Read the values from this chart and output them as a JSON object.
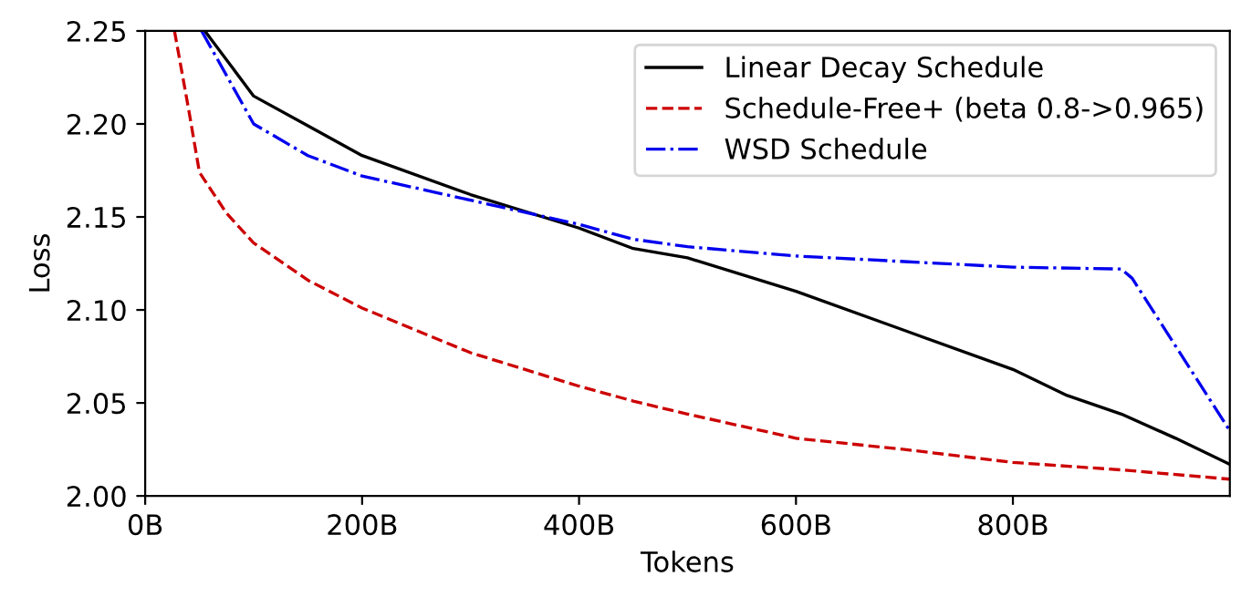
{
  "chart_data": {
    "type": "line",
    "xlabel": "Tokens",
    "ylabel": "Loss",
    "xlim": [
      0,
      1000
    ],
    "ylim": [
      2.0,
      2.25
    ],
    "xticks": [
      {
        "value": 0,
        "label": "0B"
      },
      {
        "value": 200,
        "label": "200B"
      },
      {
        "value": 400,
        "label": "400B"
      },
      {
        "value": 600,
        "label": "600B"
      },
      {
        "value": 800,
        "label": "800B"
      }
    ],
    "yticks": [
      {
        "value": 2.0,
        "label": "2.00"
      },
      {
        "value": 2.05,
        "label": "2.05"
      },
      {
        "value": 2.1,
        "label": "2.10"
      },
      {
        "value": 2.15,
        "label": "2.15"
      },
      {
        "value": 2.2,
        "label": "2.20"
      },
      {
        "value": 2.25,
        "label": "2.25"
      }
    ],
    "grid": false,
    "legend": "top right",
    "marker": "none",
    "series": [
      {
        "name": "Linear Decay Schedule",
        "color": "#000000",
        "line_style": "solid",
        "x": [
          55,
          100,
          150,
          200,
          300,
          400,
          450,
          500,
          600,
          700,
          800,
          850,
          900,
          950,
          1000
        ],
        "values": [
          2.25,
          2.215,
          2.199,
          2.183,
          2.162,
          2.144,
          2.133,
          2.128,
          2.11,
          2.089,
          2.068,
          2.054,
          2.044,
          2.031,
          2.017
        ]
      },
      {
        "name": "Schedule-Free+ (beta 0.8->0.965)",
        "color": "#cc0000",
        "line_style": "dashed",
        "x": [
          27,
          40,
          50,
          75,
          100,
          150,
          200,
          300,
          400,
          450,
          500,
          600,
          700,
          800,
          900,
          1000
        ],
        "values": [
          2.25,
          2.208,
          2.174,
          2.152,
          2.136,
          2.116,
          2.101,
          2.077,
          2.059,
          2.051,
          2.044,
          2.031,
          2.025,
          2.018,
          2.014,
          2.009
        ]
      },
      {
        "name": "WSD Schedule",
        "color": "#0000ee",
        "line_style": "dashdot",
        "x": [
          52,
          100,
          150,
          200,
          300,
          400,
          450,
          500,
          600,
          700,
          800,
          900,
          910,
          1000
        ],
        "values": [
          2.25,
          2.2,
          2.183,
          2.172,
          2.159,
          2.146,
          2.138,
          2.134,
          2.129,
          2.126,
          2.123,
          2.122,
          2.117,
          2.035
        ]
      }
    ]
  }
}
